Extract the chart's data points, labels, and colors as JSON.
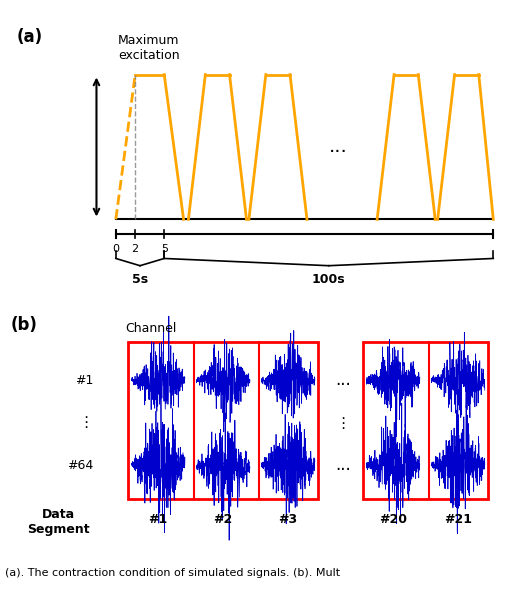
{
  "fig_width": 5.26,
  "fig_height": 5.98,
  "panel_a_label": "(a)",
  "panel_b_label": "(b)",
  "max_excitation_label": "Maximum\nexcitation",
  "orange_color": "#FFA500",
  "blue_color": "#0000CC",
  "red_color": "#FF0000",
  "black_color": "#000000",
  "tick_labels": [
    "0",
    "2",
    "5"
  ],
  "brace_label_5s": "5s",
  "brace_label_100s": "100s",
  "channel_label": "Channel",
  "channel_1_label": "#1",
  "channel_dots": "⋮",
  "channel_64_label": "#64",
  "data_segment_label": "Data\nSegment",
  "segment_labels": [
    "#1",
    "#2",
    "#3",
    "#20",
    "#21"
  ],
  "dots_label": "...",
  "caption": "(a). The contraction condition of simulated signals. (b). Mult"
}
